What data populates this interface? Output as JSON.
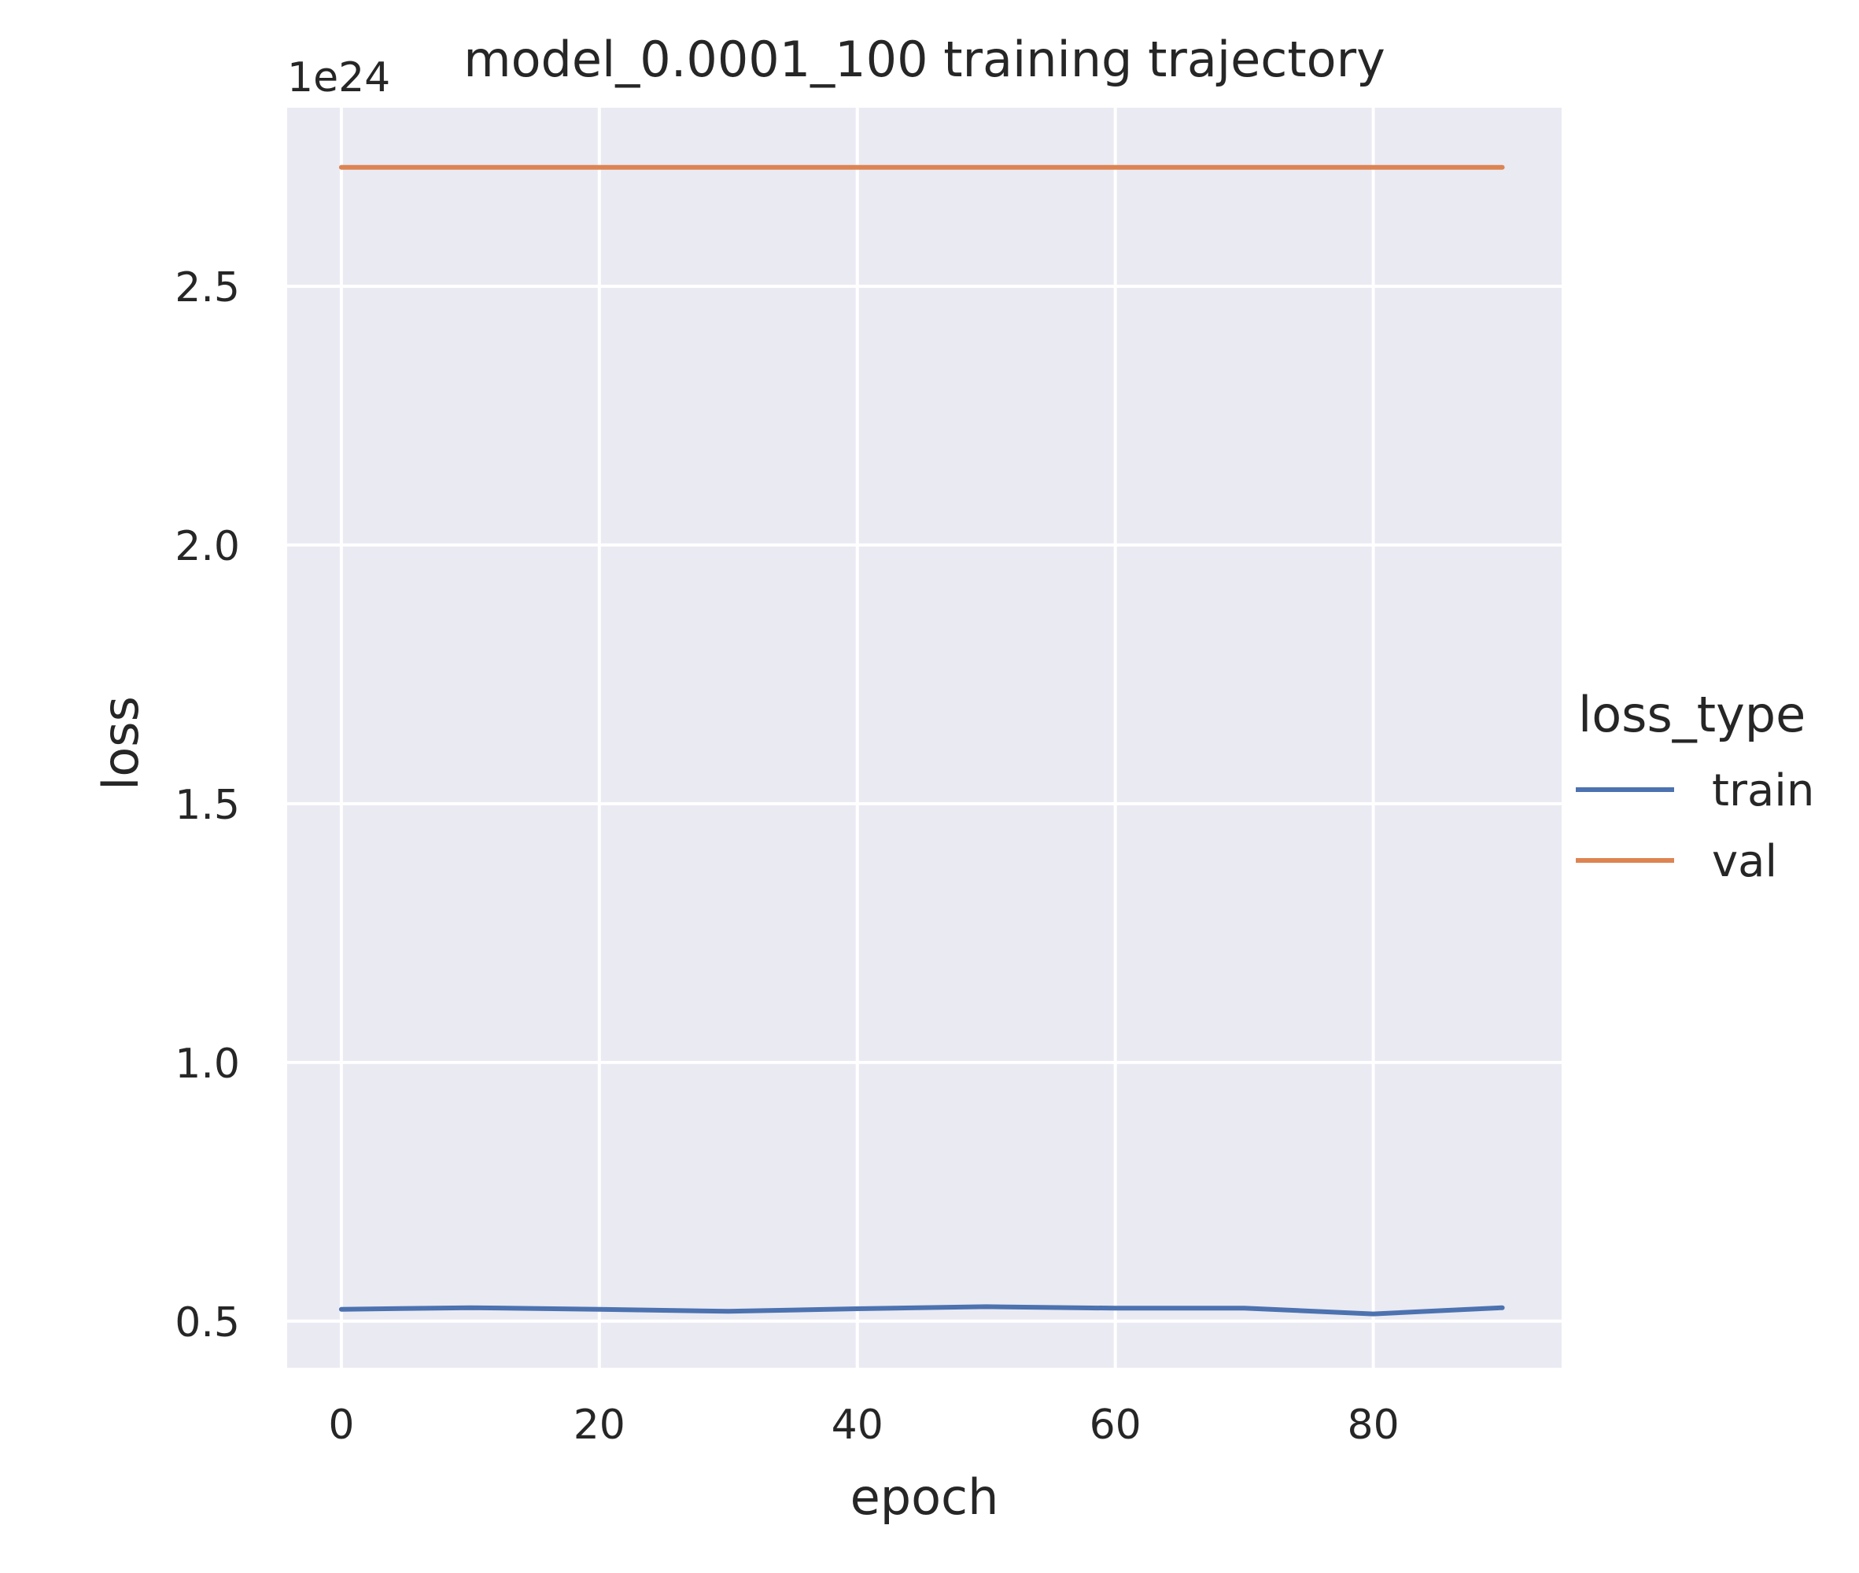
{
  "chart_data": {
    "type": "line",
    "title": "model_0.0001_100 training trajectory",
    "xlabel": "epoch",
    "ylabel": "loss",
    "y_offset_text": "1e24",
    "x_ticks": [
      0,
      20,
      40,
      60,
      80
    ],
    "x_tick_labels": [
      "0",
      "20",
      "40",
      "60",
      "80"
    ],
    "y_ticks": [
      0.5,
      1.0,
      1.5,
      2.0,
      2.5
    ],
    "y_tick_labels": [
      "0.5",
      "1.0",
      "1.5",
      "2.0",
      "2.5"
    ],
    "xlim": [
      -4.2,
      94.6
    ],
    "ylim": [
      0.41,
      2.845
    ],
    "grid": true,
    "background": "#eaeaf2",
    "grid_color": "#ffffff",
    "legend": {
      "title": "loss_type",
      "placement": "right",
      "entries": [
        "train",
        "val"
      ]
    },
    "x": [
      0,
      10,
      20,
      30,
      40,
      50,
      60,
      70,
      80,
      90
    ],
    "series": [
      {
        "name": "train",
        "color": "#4c72b0",
        "values": [
          0.523,
          0.526,
          0.523,
          0.519,
          0.524,
          0.528,
          0.525,
          0.525,
          0.514,
          0.526
        ]
      },
      {
        "name": "val",
        "color": "#dd8452",
        "values": [
          2.73,
          2.73,
          2.73,
          2.73,
          2.73,
          2.73,
          2.73,
          2.73,
          2.73,
          2.73
        ]
      }
    ]
  }
}
